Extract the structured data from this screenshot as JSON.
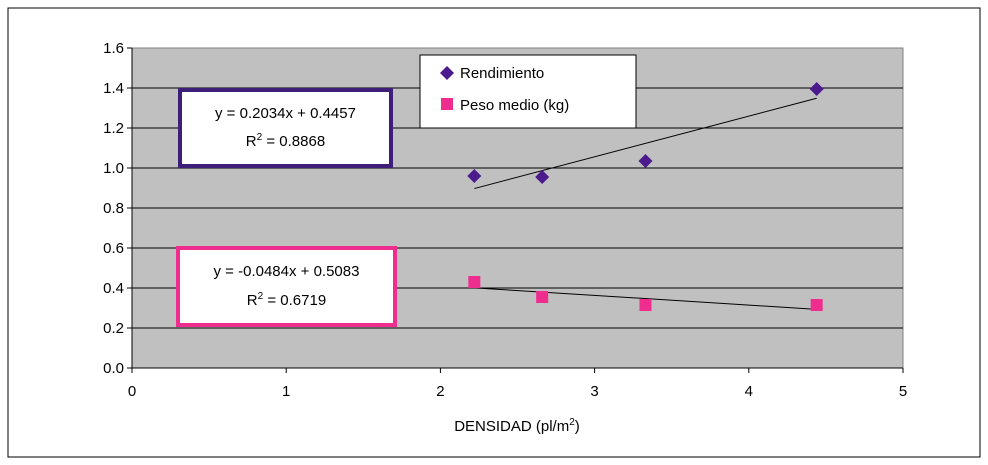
{
  "chart_data": {
    "type": "scatter",
    "title": "",
    "xlabel": {
      "prefix": "DENSIDAD (pl/m",
      "sup": "2",
      "suffix": ")"
    },
    "ylabel": "",
    "xlim": [
      0,
      5
    ],
    "ylim": [
      0,
      1.6
    ],
    "x_ticks": [
      "0",
      "1",
      "2",
      "3",
      "4",
      "5"
    ],
    "y_ticks": [
      "0.0",
      "0.2",
      "0.4",
      "0.6",
      "0.8",
      "1.0",
      "1.2",
      "1.4",
      "1.6"
    ],
    "grid": "horizontal",
    "plot_background": "#c0c0c0",
    "legend_position": "top-center",
    "series": [
      {
        "name": "Rendimiento",
        "marker": "diamond",
        "color": "#4b1a8c",
        "x": [
          2.22,
          2.66,
          3.33,
          4.44
        ],
        "y": [
          0.96,
          0.955,
          1.035,
          1.395
        ],
        "trendline": {
          "slope": 0.2034,
          "intercept": 0.4457,
          "x_range": [
            2.22,
            4.44
          ],
          "equation": "y = 0.2034x + 0.4457",
          "r2_label": "R",
          "r2_sup": "2",
          "r2_value": " = 0.8868",
          "box_color": "#3d1f7a"
        }
      },
      {
        "name": "Peso medio (kg)",
        "marker": "square",
        "color": "#ee2d8e",
        "x": [
          2.22,
          2.66,
          3.33,
          4.44
        ],
        "y": [
          0.43,
          0.355,
          0.315,
          0.315
        ],
        "trendline": {
          "slope": -0.0484,
          "intercept": 0.5083,
          "x_range": [
            2.22,
            4.44
          ],
          "equation": "y = -0.0484x + 0.5083",
          "r2_label": "R",
          "r2_sup": "2",
          "r2_value": " = 0.6719",
          "box_color": "#ee2d8e"
        }
      }
    ]
  }
}
